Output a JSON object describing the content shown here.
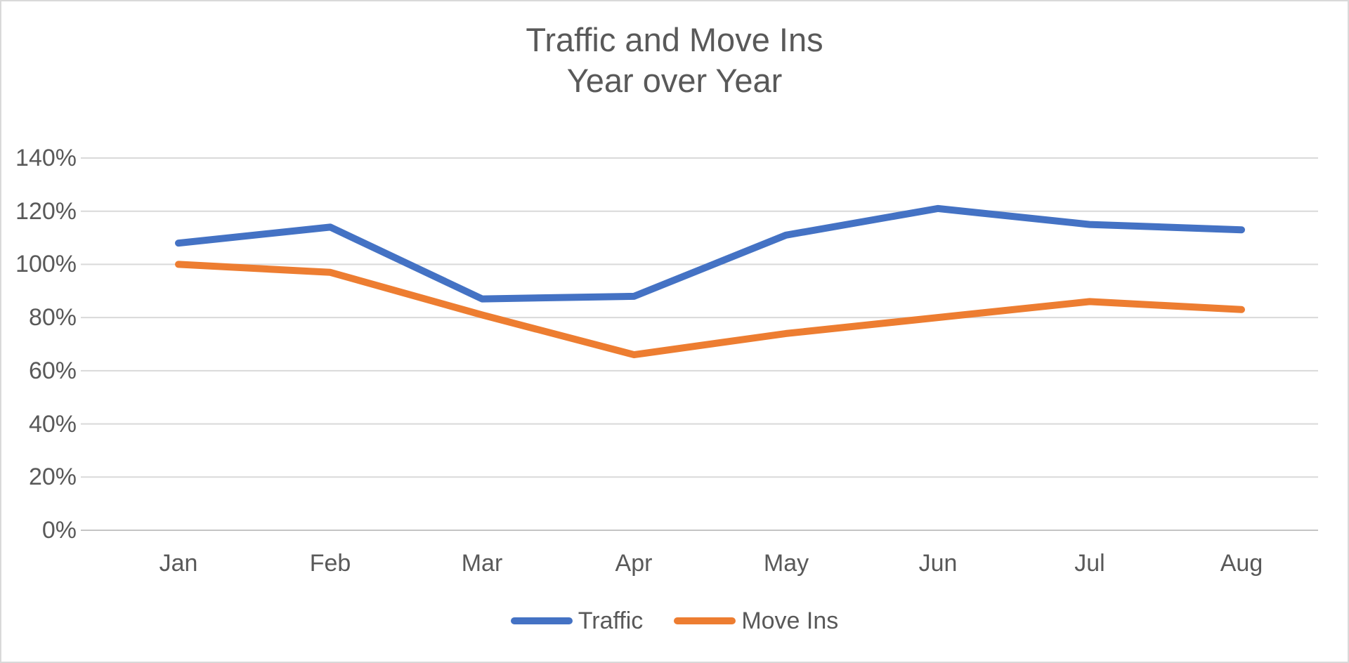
{
  "chart_data": {
    "type": "line",
    "title": "Traffic and Move Ins",
    "subtitle": "Year over Year",
    "categories": [
      "Jan",
      "Feb",
      "Mar",
      "Apr",
      "May",
      "Jun",
      "Jul",
      "Aug"
    ],
    "series": [
      {
        "name": "Traffic",
        "color": "#4472C4",
        "values": [
          108,
          114,
          87,
          88,
          111,
          121,
          115,
          113
        ]
      },
      {
        "name": "Move Ins",
        "color": "#ED7D31",
        "values": [
          100,
          97,
          81,
          66,
          74,
          80,
          86,
          83
        ]
      }
    ],
    "ylim": [
      0,
      140
    ],
    "y_ticks": {
      "values": [
        140,
        120,
        100,
        80,
        60,
        40,
        20,
        0
      ],
      "labels": [
        "140%",
        "120%",
        "100%",
        "80%",
        "60%",
        "40%",
        "20%",
        "0%"
      ]
    },
    "grid": "horizontal-only",
    "legend_position": "bottom-center",
    "colors": {
      "text": "#595959",
      "gridline": "#D9D9D9",
      "axis_line": "#C4C4C4",
      "background": "#FFFFFF",
      "border": "#D9D9D9"
    }
  }
}
